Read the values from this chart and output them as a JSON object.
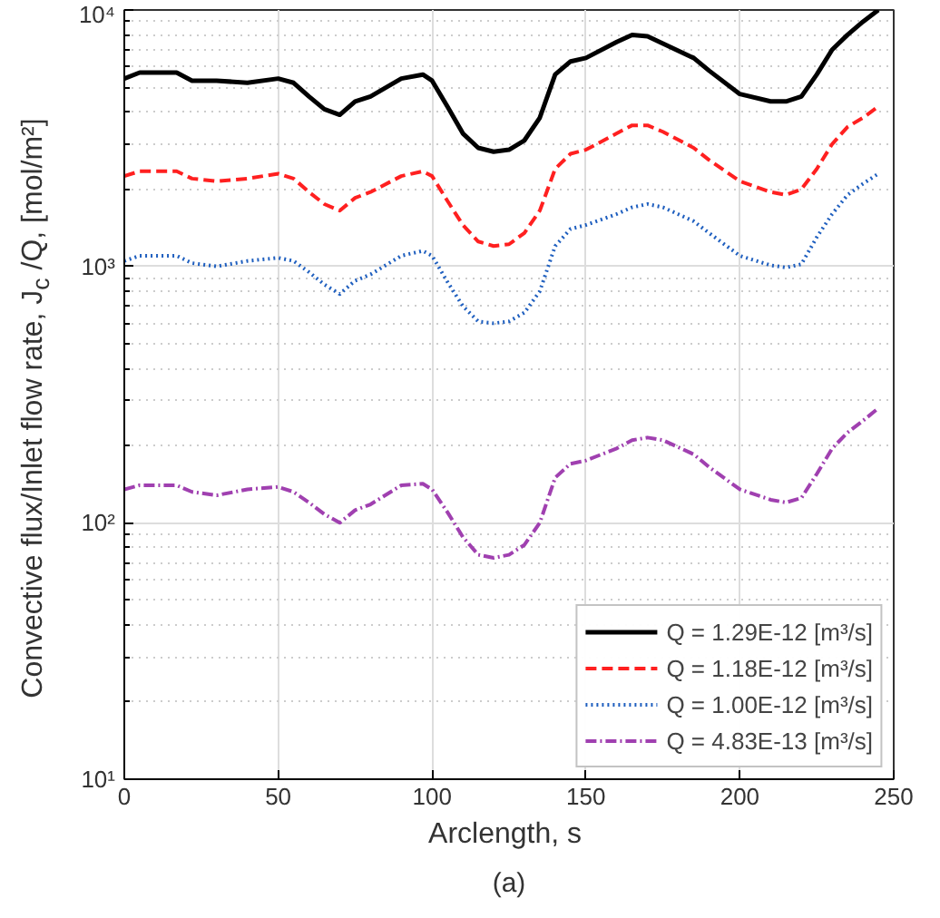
{
  "chart_data": {
    "type": "line",
    "xlabel": "Arclength,  s",
    "ylabel": "Convective flux/Inlet flow rate,  J$_{c}$ /Q, [mol/m²]",
    "annotations": [
      "(a)"
    ],
    "x": [
      0,
      5,
      10,
      17,
      22,
      30,
      40,
      50,
      55,
      60,
      65,
      70,
      75,
      80,
      90,
      97,
      100,
      105,
      110,
      115,
      120,
      125,
      130,
      135,
      140,
      145,
      150,
      160,
      165,
      170,
      175,
      185,
      190,
      200,
      210,
      215,
      220,
      225,
      230,
      235,
      240,
      245
    ],
    "series": [
      {
        "name": "Q = 1.29E-12 [m³/s]",
        "color": "#000000",
        "line_style": "solid",
        "values": [
          5400,
          5700,
          5700,
          5700,
          5300,
          5300,
          5200,
          5400,
          5200,
          4600,
          4100,
          3900,
          4400,
          4600,
          5400,
          5600,
          5300,
          4200,
          3300,
          2900,
          2800,
          2850,
          3100,
          3800,
          5600,
          6300,
          6500,
          7500,
          8000,
          7900,
          7400,
          6500,
          5800,
          4700,
          4400,
          4400,
          4600,
          5600,
          7000,
          8000,
          9000,
          10000
        ]
      },
      {
        "name": "Q = 1.18E-12 [m³/s]",
        "color": "#ff2020",
        "line_style": "dashed",
        "values": [
          2250,
          2350,
          2350,
          2350,
          2200,
          2150,
          2200,
          2300,
          2200,
          1950,
          1750,
          1650,
          1850,
          1950,
          2250,
          2350,
          2250,
          1800,
          1450,
          1250,
          1200,
          1220,
          1350,
          1650,
          2400,
          2750,
          2850,
          3300,
          3550,
          3550,
          3350,
          2900,
          2600,
          2150,
          1950,
          1900,
          2000,
          2400,
          3000,
          3500,
          3800,
          4200
        ]
      },
      {
        "name": "Q = 1.00E-12 [m³/s]",
        "color": "#1f5fbf",
        "line_style": "dotted",
        "values": [
          1050,
          1100,
          1100,
          1100,
          1030,
          1000,
          1050,
          1080,
          1050,
          950,
          850,
          780,
          880,
          930,
          1100,
          1150,
          1100,
          870,
          700,
          610,
          600,
          610,
          660,
          800,
          1200,
          1400,
          1450,
          1600,
          1700,
          1750,
          1700,
          1500,
          1350,
          1100,
          1010,
          990,
          1020,
          1300,
          1600,
          1900,
          2100,
          2300
        ]
      },
      {
        "name": "Q = 4.83E-13 [m³/s]",
        "color": "#a040b0",
        "line_style": "dashdot",
        "values": [
          135,
          140,
          140,
          140,
          132,
          128,
          135,
          138,
          132,
          120,
          108,
          100,
          112,
          118,
          140,
          142,
          135,
          110,
          88,
          75,
          73,
          75,
          82,
          100,
          150,
          170,
          175,
          195,
          210,
          215,
          210,
          185,
          165,
          135,
          123,
          120,
          125,
          155,
          195,
          225,
          250,
          280
        ]
      }
    ],
    "log": "y",
    "xlim": [
      0,
      250
    ],
    "ylim": [
      10,
      10000
    ],
    "xticks": [
      0,
      50,
      100,
      150,
      200,
      250
    ],
    "yticks": [
      {
        "value": 10,
        "label": "10¹"
      },
      {
        "value": 100,
        "label": "10²"
      },
      {
        "value": 1000,
        "label": "10³"
      },
      {
        "value": 10000,
        "label": "10⁴"
      }
    ],
    "grid": true,
    "legend": "bottom right"
  }
}
